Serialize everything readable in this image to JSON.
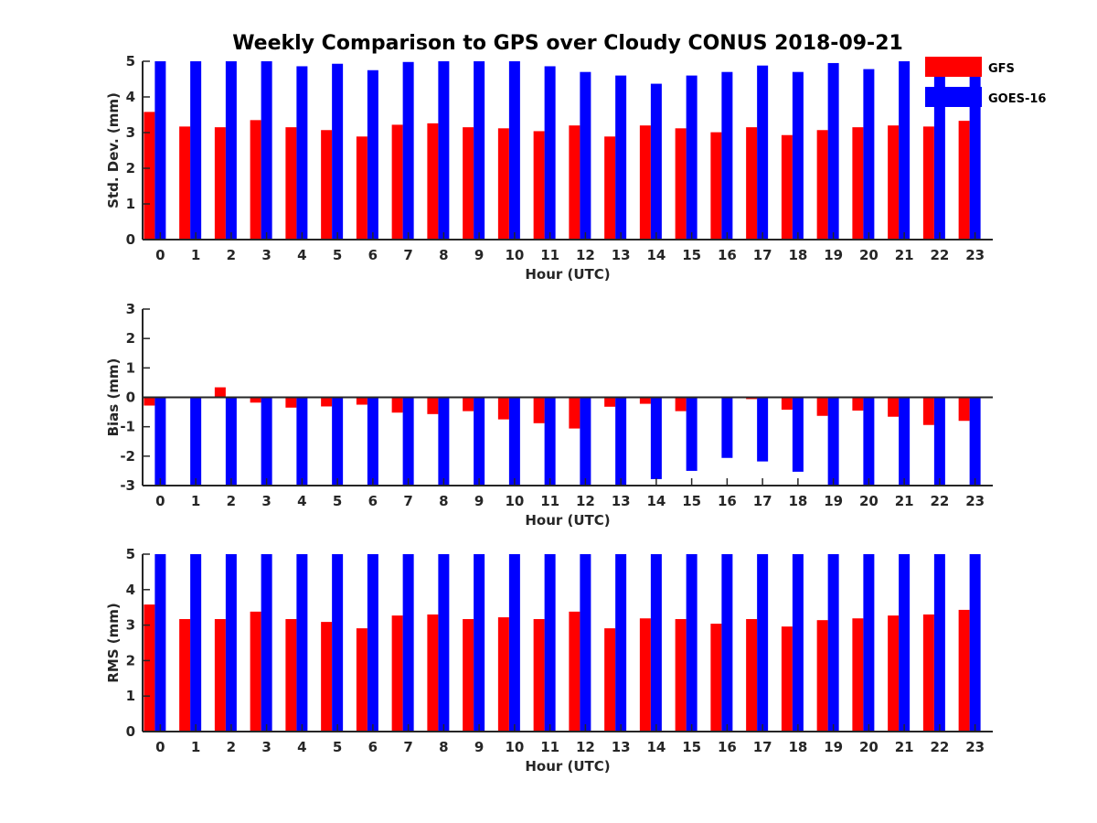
{
  "figure": {
    "title": "Weekly Comparison to GPS over Cloudy CONUS 2018-09-21"
  },
  "legend": {
    "placement": "top-right",
    "items": [
      {
        "label": "GFS",
        "color": "#ff0000"
      },
      {
        "label": "GOES-16",
        "color": "#0000ff"
      }
    ]
  },
  "chart_data": [
    {
      "type": "bar",
      "title": "Weekly Comparison to GPS over Cloudy CONUS 2018-09-21",
      "xlabel": "Hour (UTC)",
      "ylabel": "Std. Dev. (mm)",
      "ylim": [
        0,
        5
      ],
      "yticks": [
        0,
        1,
        2,
        3,
        4,
        5
      ],
      "grid": false,
      "categories": [
        "0",
        "1",
        "2",
        "3",
        "4",
        "5",
        "6",
        "7",
        "8",
        "9",
        "10",
        "11",
        "12",
        "13",
        "14",
        "15",
        "16",
        "17",
        "18",
        "19",
        "20",
        "21",
        "22",
        "23"
      ],
      "series": [
        {
          "name": "GFS",
          "color": "#ff0000",
          "values": [
            3.58,
            3.17,
            3.15,
            3.35,
            3.15,
            3.07,
            2.89,
            3.22,
            3.26,
            3.15,
            3.12,
            3.04,
            3.2,
            2.89,
            3.2,
            3.12,
            3.01,
            3.15,
            2.93,
            3.07,
            3.15,
            3.2,
            3.17,
            3.33
          ]
        },
        {
          "name": "GOES-16",
          "color": "#0000ff",
          "values": [
            5.0,
            5.0,
            5.0,
            5.0,
            4.86,
            4.93,
            4.75,
            4.98,
            5.0,
            5.0,
            5.0,
            4.86,
            4.7,
            4.6,
            4.37,
            4.6,
            4.7,
            4.88,
            4.7,
            4.95,
            4.78,
            5.0,
            4.68,
            4.9
          ]
        }
      ]
    },
    {
      "type": "bar",
      "title": "",
      "xlabel": "Hour (UTC)",
      "ylabel": "Bias (mm)",
      "ylim": [
        -3,
        3
      ],
      "yticks": [
        -3,
        -2,
        -1,
        0,
        1,
        2,
        3
      ],
      "zero_line": true,
      "grid": false,
      "categories": [
        "0",
        "1",
        "2",
        "3",
        "4",
        "5",
        "6",
        "7",
        "8",
        "9",
        "10",
        "11",
        "12",
        "13",
        "14",
        "15",
        "16",
        "17",
        "18",
        "19",
        "20",
        "21",
        "22",
        "23"
      ],
      "series": [
        {
          "name": "GFS",
          "color": "#ff0000",
          "values": [
            -0.28,
            0.0,
            0.34,
            -0.18,
            -0.35,
            -0.31,
            -0.25,
            -0.52,
            -0.57,
            -0.47,
            -0.75,
            -0.88,
            -1.06,
            -0.32,
            -0.22,
            -0.47,
            0.0,
            -0.06,
            -0.42,
            -0.63,
            -0.45,
            -0.66,
            -0.94,
            -0.8
          ]
        },
        {
          "name": "GOES-16",
          "color": "#0000ff",
          "values": [
            -3.0,
            -3.0,
            -3.0,
            -3.0,
            -3.0,
            -3.0,
            -3.0,
            -3.0,
            -3.0,
            -3.0,
            -3.0,
            -3.0,
            -3.0,
            -3.0,
            -2.78,
            -2.5,
            -2.06,
            -2.18,
            -2.53,
            -3.0,
            -3.0,
            -3.0,
            -3.0,
            -3.0
          ]
        }
      ]
    },
    {
      "type": "bar",
      "title": "",
      "xlabel": "Hour (UTC)",
      "ylabel": "RMS (mm)",
      "ylim": [
        0,
        5
      ],
      "yticks": [
        0,
        1,
        2,
        3,
        4,
        5
      ],
      "grid": false,
      "categories": [
        "0",
        "1",
        "2",
        "3",
        "4",
        "5",
        "6",
        "7",
        "8",
        "9",
        "10",
        "11",
        "12",
        "13",
        "14",
        "15",
        "16",
        "17",
        "18",
        "19",
        "20",
        "21",
        "22",
        "23"
      ],
      "series": [
        {
          "name": "GFS",
          "color": "#ff0000",
          "values": [
            3.58,
            3.17,
            3.17,
            3.38,
            3.17,
            3.09,
            2.91,
            3.27,
            3.3,
            3.17,
            3.22,
            3.17,
            3.38,
            2.91,
            3.19,
            3.17,
            3.04,
            3.17,
            2.96,
            3.14,
            3.19,
            3.27,
            3.3,
            3.43
          ]
        },
        {
          "name": "GOES-16",
          "color": "#0000ff",
          "values": [
            5.0,
            5.0,
            5.0,
            5.0,
            5.0,
            5.0,
            5.0,
            5.0,
            5.0,
            5.0,
            5.0,
            5.0,
            5.0,
            5.0,
            5.0,
            5.0,
            5.0,
            5.0,
            5.0,
            5.0,
            5.0,
            5.0,
            5.0,
            5.0
          ]
        }
      ]
    }
  ]
}
